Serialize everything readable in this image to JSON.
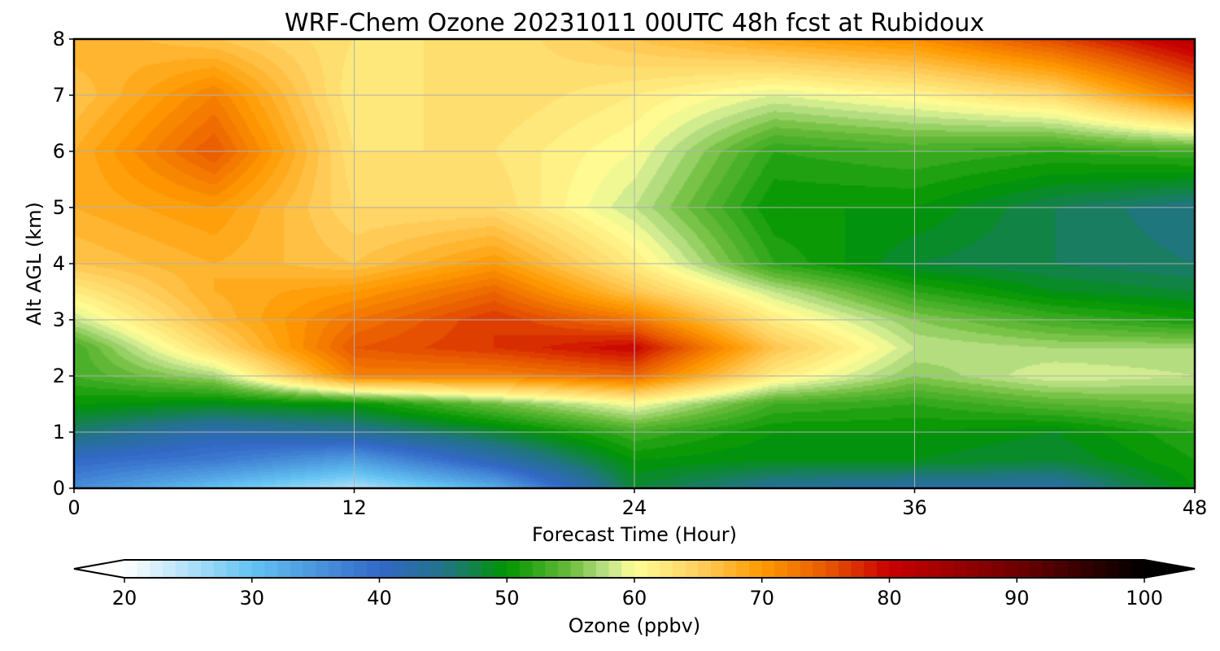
{
  "chart_data": {
    "type": "heatmap",
    "title": "WRF-Chem Ozone  20231011 00UTC 48h fcst at Rubidoux",
    "xlabel": "Forecast Time (Hour)",
    "ylabel": "Alt AGL (km)",
    "xlim": [
      0,
      48
    ],
    "ylim": [
      0,
      8
    ],
    "xticks": [
      0,
      12,
      24,
      36,
      48
    ],
    "yticks": [
      0,
      1,
      2,
      3,
      4,
      5,
      6,
      7,
      8
    ],
    "grid": true,
    "colorbar": {
      "label": "Ozone  (ppbv)",
      "min": 20,
      "max": 100,
      "step": 1,
      "ticks": [
        20,
        30,
        40,
        50,
        60,
        70,
        80,
        90,
        100
      ],
      "extend": "both",
      "stops": [
        {
          "value": 20,
          "color": "#ffffff"
        },
        {
          "value": 30,
          "color": "#63c3f2"
        },
        {
          "value": 40,
          "color": "#3368c8"
        },
        {
          "value": 45,
          "color": "#22728a"
        },
        {
          "value": 50,
          "color": "#009600"
        },
        {
          "value": 55,
          "color": "#6cbc3c"
        },
        {
          "value": 58,
          "color": "#c2e48c"
        },
        {
          "value": 60,
          "color": "#ffff96"
        },
        {
          "value": 65,
          "color": "#ffd060"
        },
        {
          "value": 70,
          "color": "#ff9a00"
        },
        {
          "value": 75,
          "color": "#e85a00"
        },
        {
          "value": 80,
          "color": "#c80000"
        },
        {
          "value": 90,
          "color": "#6e0000"
        },
        {
          "value": 100,
          "color": "#000000"
        }
      ]
    },
    "x": [
      0,
      6,
      12,
      18,
      24,
      30,
      36,
      42,
      48
    ],
    "y": [
      0,
      0.5,
      1,
      1.5,
      2,
      2.5,
      3,
      3.5,
      4,
      5,
      6,
      7,
      8
    ],
    "z": [
      [
        36,
        30,
        25,
        32,
        48,
        44,
        43,
        43,
        50
      ],
      [
        40,
        38,
        34,
        42,
        50,
        49,
        49,
        48,
        51
      ],
      [
        46,
        42,
        44,
        48,
        53,
        50,
        50,
        49,
        52
      ],
      [
        50,
        49,
        50,
        55,
        60,
        53,
        52,
        54,
        55
      ],
      [
        53,
        57,
        72,
        72,
        74,
        62,
        56,
        59,
        58
      ],
      [
        53,
        64,
        75,
        77,
        80,
        66,
        58,
        57,
        57
      ],
      [
        58,
        67,
        73,
        77,
        73,
        62,
        56,
        53,
        51
      ],
      [
        62,
        68,
        70,
        74,
        66,
        58,
        52,
        49,
        48
      ],
      [
        66,
        68,
        66,
        70,
        62,
        52,
        48,
        47,
        46
      ],
      [
        68,
        70,
        64,
        64,
        58,
        50,
        50,
        47,
        45
      ],
      [
        68,
        75,
        63,
        63,
        60,
        52,
        53,
        52,
        53
      ],
      [
        66,
        72,
        62,
        64,
        62,
        59,
        61,
        64,
        73
      ],
      [
        68,
        66,
        63,
        63,
        66,
        69,
        71,
        76,
        82
      ]
    ]
  }
}
